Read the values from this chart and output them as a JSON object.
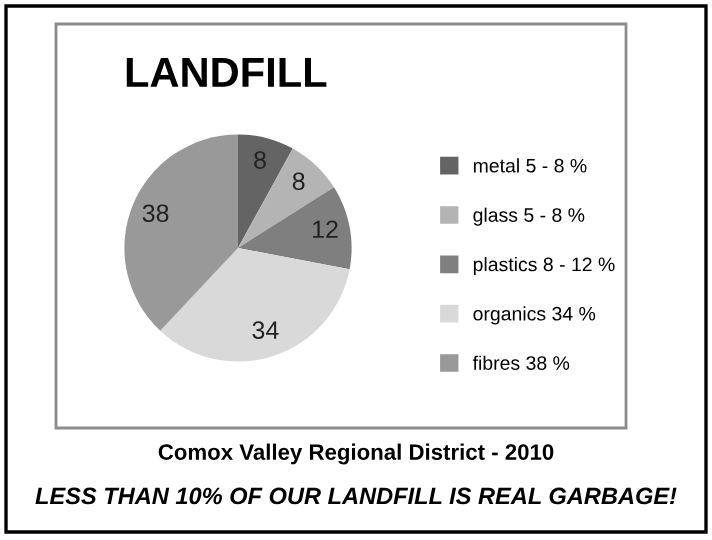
{
  "chart_data": {
    "type": "pie",
    "title": "LANDFILL",
    "categories": [
      "metal 5 - 8 %",
      "glass 5 - 8 %",
      "plastics 8 - 12 %",
      "organics 34 %",
      "fibres 38 %"
    ],
    "values": [
      8,
      8,
      12,
      34,
      38
    ],
    "colors": [
      "#646464",
      "#b4b4b4",
      "#7f7f7f",
      "#d9d9d9",
      "#999999"
    ],
    "data_labels": true,
    "legend": "right",
    "annotations": [
      "Comox Valley Regional District - 2010",
      "LESS THAN 10% OF OUR LANDFILL IS REAL GARBAGE!"
    ]
  }
}
